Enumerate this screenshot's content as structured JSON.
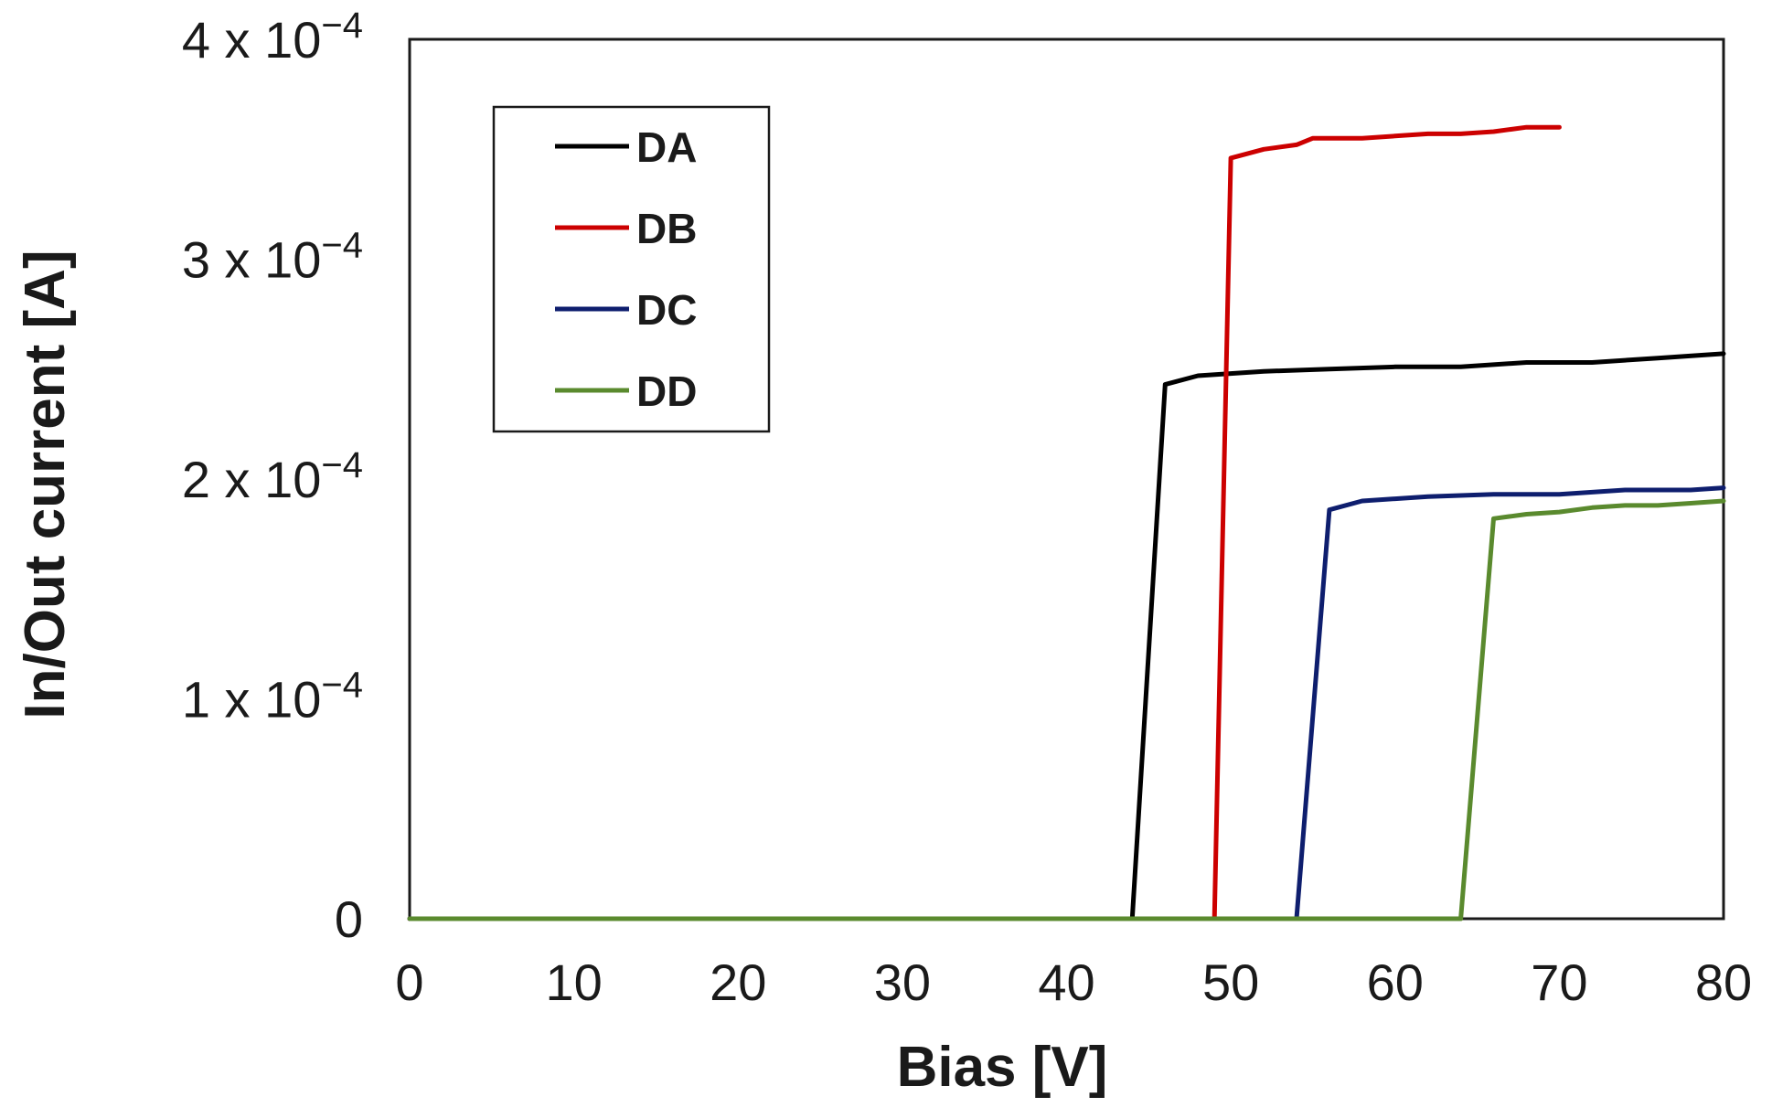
{
  "chart_data": {
    "type": "line",
    "xlabel": "Bias [V]",
    "ylabel": "In/Out current [A]",
    "xlim": [
      0,
      80
    ],
    "ylim": [
      0,
      0.0004
    ],
    "grid": false,
    "legend_position": "top-left",
    "x_ticks": [
      {
        "value": 0,
        "label": "0"
      },
      {
        "value": 10,
        "label": "10"
      },
      {
        "value": 20,
        "label": "20"
      },
      {
        "value": 30,
        "label": "30"
      },
      {
        "value": 40,
        "label": "40"
      },
      {
        "value": 50,
        "label": "50"
      },
      {
        "value": 60,
        "label": "60"
      },
      {
        "value": 70,
        "label": "70"
      },
      {
        "value": 80,
        "label": "80"
      }
    ],
    "y_ticks": [
      {
        "value": 0,
        "mantissa": "0",
        "times": "",
        "base": "",
        "exponent": ""
      },
      {
        "value": 0.0001,
        "mantissa": "1",
        "times": "x",
        "base": "10",
        "exponent": "−4"
      },
      {
        "value": 0.0002,
        "mantissa": "2",
        "times": "x",
        "base": "10",
        "exponent": "−4"
      },
      {
        "value": 0.0003,
        "mantissa": "3",
        "times": "x",
        "base": "10",
        "exponent": "−4"
      },
      {
        "value": 0.0004,
        "mantissa": "4",
        "times": "x",
        "base": "10",
        "exponent": "−4"
      }
    ],
    "series": [
      {
        "name": "DA",
        "color": "#000000",
        "points": [
          [
            0,
            0
          ],
          [
            44,
            0
          ],
          [
            46,
            0.000243
          ],
          [
            48,
            0.000247
          ],
          [
            50,
            0.000248
          ],
          [
            52,
            0.000249
          ],
          [
            56,
            0.00025
          ],
          [
            60,
            0.000251
          ],
          [
            64,
            0.000251
          ],
          [
            68,
            0.000253
          ],
          [
            72,
            0.000253
          ],
          [
            76,
            0.000255
          ],
          [
            80,
            0.000257
          ]
        ]
      },
      {
        "name": "DB",
        "color": "#cc0000",
        "points": [
          [
            0,
            0
          ],
          [
            49,
            0
          ],
          [
            50,
            0.000346
          ],
          [
            52,
            0.00035
          ],
          [
            54,
            0.000352
          ],
          [
            55,
            0.000355
          ],
          [
            58,
            0.000355
          ],
          [
            60,
            0.000356
          ],
          [
            62,
            0.000357
          ],
          [
            64,
            0.000357
          ],
          [
            66,
            0.000358
          ],
          [
            68,
            0.00036
          ],
          [
            70,
            0.00036
          ]
        ]
      },
      {
        "name": "DC",
        "color": "#0e1e6e",
        "points": [
          [
            0,
            0
          ],
          [
            54,
            0
          ],
          [
            56,
            0.000186
          ],
          [
            58,
            0.00019
          ],
          [
            60,
            0.000191
          ],
          [
            62,
            0.000192
          ],
          [
            66,
            0.000193
          ],
          [
            70,
            0.000193
          ],
          [
            74,
            0.000195
          ],
          [
            78,
            0.000195
          ],
          [
            80,
            0.000196
          ]
        ]
      },
      {
        "name": "DD",
        "color": "#5a8a2e",
        "points": [
          [
            0,
            0
          ],
          [
            64,
            0
          ],
          [
            66,
            0.000182
          ],
          [
            68,
            0.000184
          ],
          [
            70,
            0.000185
          ],
          [
            72,
            0.000187
          ],
          [
            74,
            0.000188
          ],
          [
            76,
            0.000188
          ],
          [
            78,
            0.000189
          ],
          [
            80,
            0.00019
          ]
        ]
      }
    ]
  }
}
